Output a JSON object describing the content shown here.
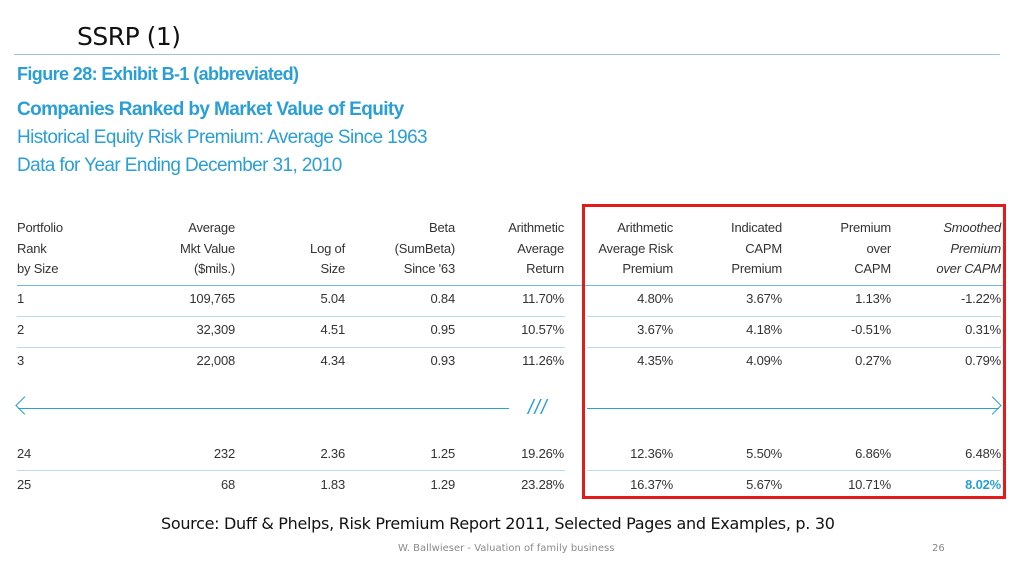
{
  "slide_title": "SSRP (1)",
  "figure": {
    "label": "Figure 28: Exhibit B-1 (abbreviated)",
    "heading": "Companies Ranked by Market Value of Equity",
    "subheading1": "Historical Equity Risk Premium: Average Since 1963",
    "subheading2": "Data for Year Ending December 31, 2010"
  },
  "table": {
    "headers": [
      [
        "Portfolio",
        "Rank",
        "by Size"
      ],
      [
        "Average",
        "Mkt Value",
        "($mils.)"
      ],
      [
        "",
        "Log of",
        "Size"
      ],
      [
        "Beta",
        "(SumBeta)",
        "Since '63"
      ],
      [
        "Arithmetic",
        "Average",
        "Return"
      ],
      [
        "Arithmetic",
        "Average Risk",
        "Premium"
      ],
      [
        "Indicated",
        "CAPM",
        "Premium"
      ],
      [
        "Premium",
        "over",
        "CAPM"
      ],
      [
        "Smoothed",
        "Premium",
        "over CAPM"
      ]
    ],
    "rows": [
      [
        "1",
        "109,765",
        "5.04",
        "0.84",
        "11.70%",
        "4.80%",
        "3.67%",
        "1.13%",
        "-1.22%"
      ],
      [
        "2",
        "32,309",
        "4.51",
        "0.95",
        "10.57%",
        "3.67%",
        "4.18%",
        "-0.51%",
        "0.31%"
      ],
      [
        "3",
        "22,008",
        "4.34",
        "0.93",
        "11.26%",
        "4.35%",
        "4.09%",
        "0.27%",
        "0.79%"
      ],
      [
        "24",
        "232",
        "2.36",
        "1.25",
        "19.26%",
        "12.36%",
        "5.50%",
        "6.86%",
        "6.48%"
      ],
      [
        "25",
        "68",
        "1.83",
        "1.29",
        "23.28%",
        "16.37%",
        "5.67%",
        "10.71%",
        "8.02%"
      ]
    ],
    "gap_marker": "///"
  },
  "colors": {
    "accent": "#2a9fd6",
    "highlight_box": "#e41b1b",
    "highlight_value": "#2a9fd6"
  },
  "source": "Source: Duff & Phelps, Risk Premium Report 2011, Selected Pages and Examples, p. 30",
  "footer": {
    "author": "W. Ballwieser - Valuation of family business",
    "page_number": "26"
  }
}
